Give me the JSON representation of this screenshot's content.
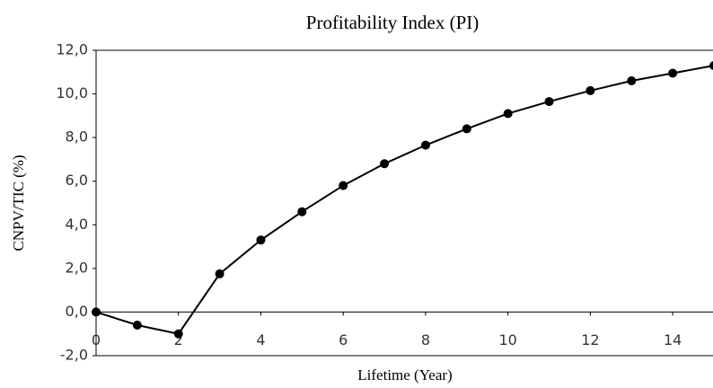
{
  "chart_data": {
    "type": "line",
    "title": "Profitability Index (PI)",
    "x_label": "Lifetime (Year)",
    "y_label": "CNPV/TIC (%)",
    "x": [
      0,
      1,
      2,
      3,
      4,
      5,
      6,
      7,
      8,
      9,
      10,
      11,
      12,
      13,
      14,
      15
    ],
    "series": [
      {
        "name": "PI",
        "color": "#000000",
        "values": [
          0,
          -0.6,
          -1.0,
          1.75,
          3.3,
          4.6,
          5.8,
          6.8,
          7.65,
          8.4,
          9.1,
          9.65,
          10.15,
          10.6,
          10.95,
          11.3
        ]
      }
    ],
    "xlim": [
      0,
      15
    ],
    "xticks": [
      0,
      2,
      4,
      6,
      8,
      10,
      12,
      14
    ],
    "ylim": [
      -2,
      12
    ],
    "yticks": [
      {
        "value": -2,
        "label": "-2,0"
      },
      {
        "value": 0,
        "label": "0,0"
      },
      {
        "value": 2,
        "label": "2,0"
      },
      {
        "value": 4,
        "label": "4,0"
      },
      {
        "value": 6,
        "label": "6,0"
      },
      {
        "value": 8,
        "label": "8,0"
      },
      {
        "value": 10,
        "label": "10,0"
      },
      {
        "value": 12,
        "label": "12,0"
      }
    ],
    "grid": false,
    "legend": false
  }
}
